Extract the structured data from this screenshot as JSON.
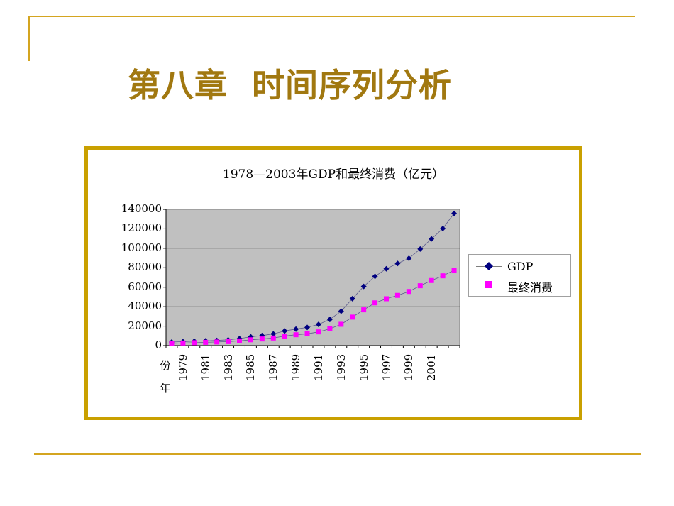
{
  "slide": {
    "title": "第八章  时间序列分析"
  },
  "colors": {
    "decor_line": "#d4a520",
    "title": "#a17810",
    "frame": "#c9a000",
    "plot_bg": "#c0c0c0",
    "gdp": "#000080",
    "consumption": "#ff00ff"
  },
  "chart_data": {
    "type": "line",
    "title": "1978—2003年GDP和最终消费（亿元）",
    "xlabel": "年份",
    "ylabel": "",
    "x": [
      1978,
      1979,
      1980,
      1981,
      1982,
      1983,
      1984,
      1985,
      1986,
      1987,
      1988,
      1989,
      1990,
      1991,
      1992,
      1993,
      1994,
      1995,
      1996,
      1997,
      1998,
      1999,
      2000,
      2001,
      2002,
      2003
    ],
    "x_tick_labels": [
      "1979",
      "1981",
      "1983",
      "1985",
      "1987",
      "1989",
      "1991",
      "1993",
      "1995",
      "1997",
      "1999",
      "2001"
    ],
    "x_tick_values": [
      1979,
      1981,
      1983,
      1985,
      1987,
      1989,
      1991,
      1993,
      1995,
      1997,
      1999,
      2001
    ],
    "ylim": [
      0,
      140000
    ],
    "y_ticks": [
      0,
      20000,
      40000,
      60000,
      80000,
      100000,
      120000,
      140000
    ],
    "grid": true,
    "legend_position": "right",
    "series": [
      {
        "name": "GDP",
        "marker": "diamond",
        "values": [
          3645,
          4063,
          4546,
          4892,
          5323,
          5963,
          7208,
          9016,
          10275,
          12059,
          15043,
          16992,
          18668,
          21781,
          26923,
          35334,
          48198,
          60794,
          71177,
          78973,
          84402,
          89677,
          99215,
          109655,
          120333,
          135823
        ]
      },
      {
        "name": "最终消费",
        "marker": "square",
        "values": [
          2239,
          2634,
          3008,
          3361,
          3715,
          4126,
          4846,
          5986,
          6822,
          7805,
          9839,
          11165,
          12091,
          14092,
          17203,
          21900,
          29242,
          36749,
          43920,
          48141,
          51589,
          55637,
          61516,
          66879,
          71691,
          77449
        ]
      }
    ]
  }
}
